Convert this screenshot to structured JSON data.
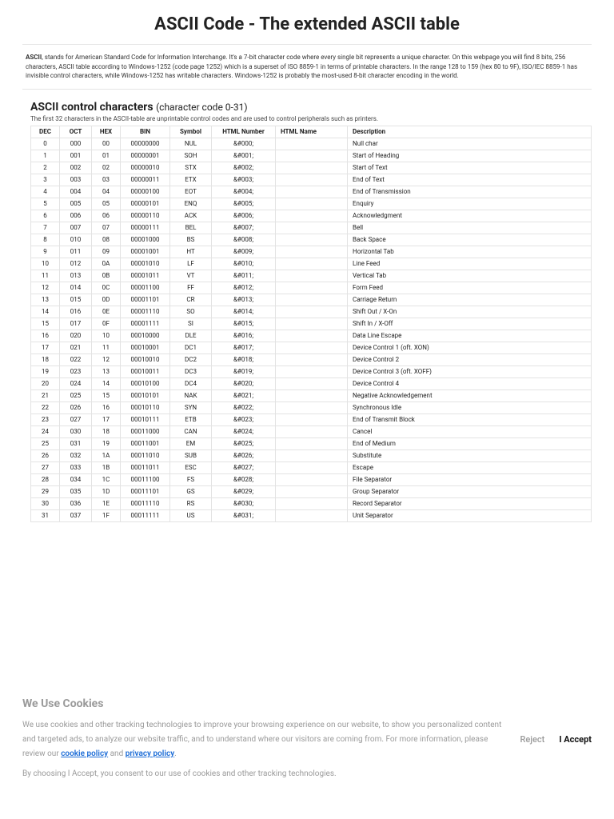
{
  "title": "ASCII Code - The extended ASCII table",
  "intro_bold": "ASCII",
  "intro_rest": ", stands for American Standard Code for Information Interchange. It's a 7-bit character code where every single bit represents a unique character. On this webpage you will find 8 bits, 256 characters, ASCII table according to Windows-1252 (code page 1252) which is a superset of ISO 8859-1 in terms of printable characters. In the range 128 to 159 (hex 80 to 9F), ISO/IEC 8859-1 has invisible control characters, while Windows-1252 has writable characters. Windows-1252 is probably the most-used 8-bit character encoding in the world.",
  "section_title": "ASCII control characters",
  "section_sub": "(character code 0-31)",
  "section_desc": "The first 32 characters in the ASCII-table are unprintable control codes and are used to control peripherals such as printers.",
  "columns": [
    "DEC",
    "OCT",
    "HEX",
    "BIN",
    "Symbol",
    "HTML Number",
    "HTML Name",
    "Description"
  ],
  "rows": [
    [
      "0",
      "000",
      "00",
      "00000000",
      "NUL",
      "&#000;",
      "",
      "Null char"
    ],
    [
      "1",
      "001",
      "01",
      "00000001",
      "SOH",
      "&#001;",
      "",
      "Start of Heading"
    ],
    [
      "2",
      "002",
      "02",
      "00000010",
      "STX",
      "&#002;",
      "",
      "Start of Text"
    ],
    [
      "3",
      "003",
      "03",
      "00000011",
      "ETX",
      "&#003;",
      "",
      "End of Text"
    ],
    [
      "4",
      "004",
      "04",
      "00000100",
      "EOT",
      "&#004;",
      "",
      "End of Transmission"
    ],
    [
      "5",
      "005",
      "05",
      "00000101",
      "ENQ",
      "&#005;",
      "",
      "Enquiry"
    ],
    [
      "6",
      "006",
      "06",
      "00000110",
      "ACK",
      "&#006;",
      "",
      "Acknowledgment"
    ],
    [
      "7",
      "007",
      "07",
      "00000111",
      "BEL",
      "&#007;",
      "",
      "Bell"
    ],
    [
      "8",
      "010",
      "08",
      "00001000",
      "BS",
      "&#008;",
      "",
      "Back Space"
    ],
    [
      "9",
      "011",
      "09",
      "00001001",
      "HT",
      "&#009;",
      "",
      "Horizontal Tab"
    ],
    [
      "10",
      "012",
      "0A",
      "00001010",
      "LF",
      "&#010;",
      "",
      "Line Feed"
    ],
    [
      "11",
      "013",
      "0B",
      "00001011",
      "VT",
      "&#011;",
      "",
      "Vertical Tab"
    ],
    [
      "12",
      "014",
      "0C",
      "00001100",
      "FF",
      "&#012;",
      "",
      "Form Feed"
    ],
    [
      "13",
      "015",
      "0D",
      "00001101",
      "CR",
      "&#013;",
      "",
      "Carriage Return"
    ],
    [
      "14",
      "016",
      "0E",
      "00001110",
      "SO",
      "&#014;",
      "",
      "Shift Out / X-On"
    ],
    [
      "15",
      "017",
      "0F",
      "00001111",
      "SI",
      "&#015;",
      "",
      "Shift In / X-Off"
    ],
    [
      "16",
      "020",
      "10",
      "00010000",
      "DLE",
      "&#016;",
      "",
      "Data Line Escape"
    ],
    [
      "17",
      "021",
      "11",
      "00010001",
      "DC1",
      "&#017;",
      "",
      "Device Control 1 (oft. XON)"
    ],
    [
      "18",
      "022",
      "12",
      "00010010",
      "DC2",
      "&#018;",
      "",
      "Device Control 2"
    ],
    [
      "19",
      "023",
      "13",
      "00010011",
      "DC3",
      "&#019;",
      "",
      "Device Control 3 (oft. XOFF)"
    ],
    [
      "20",
      "024",
      "14",
      "00010100",
      "DC4",
      "&#020;",
      "",
      "Device Control 4"
    ],
    [
      "21",
      "025",
      "15",
      "00010101",
      "NAK",
      "&#021;",
      "",
      "Negative Acknowledgement"
    ],
    [
      "22",
      "026",
      "16",
      "00010110",
      "SYN",
      "&#022;",
      "",
      "Synchronous Idle"
    ],
    [
      "23",
      "027",
      "17",
      "00010111",
      "ETB",
      "&#023;",
      "",
      "End of Transmit Block"
    ],
    [
      "24",
      "030",
      "18",
      "00011000",
      "CAN",
      "&#024;",
      "",
      "Cancel"
    ],
    [
      "25",
      "031",
      "19",
      "00011001",
      "EM",
      "&#025;",
      "",
      "End of Medium"
    ],
    [
      "26",
      "032",
      "1A",
      "00011010",
      "SUB",
      "&#026;",
      "",
      "Substitute"
    ],
    [
      "27",
      "033",
      "1B",
      "00011011",
      "ESC",
      "&#027;",
      "",
      "Escape"
    ],
    [
      "28",
      "034",
      "1C",
      "00011100",
      "FS",
      "&#028;",
      "",
      "File Separator"
    ],
    [
      "29",
      "035",
      "1D",
      "00011101",
      "GS",
      "&#029;",
      "",
      "Group Separator"
    ],
    [
      "30",
      "036",
      "1E",
      "00011110",
      "RS",
      "&#030;",
      "",
      "Record Separator"
    ],
    [
      "31",
      "037",
      "1F",
      "00011111",
      "US",
      "&#031;",
      "",
      "Unit Separator"
    ]
  ],
  "cookies": {
    "title": "We Use Cookies",
    "text_before": "We use cookies and other tracking technologies to improve your browsing experience on our website, to show you personalized content and targeted ads, to analyze our website traffic, and to understand where our visitors are coming from. For more information, please review our ",
    "link1": "cookie policy",
    "mid": " and ",
    "link2": "privacy policy",
    "end": ".",
    "foot": "By choosing I Accept, you consent to our use of cookies and other tracking technologies.",
    "reject": "Reject",
    "accept": "I Accept"
  }
}
